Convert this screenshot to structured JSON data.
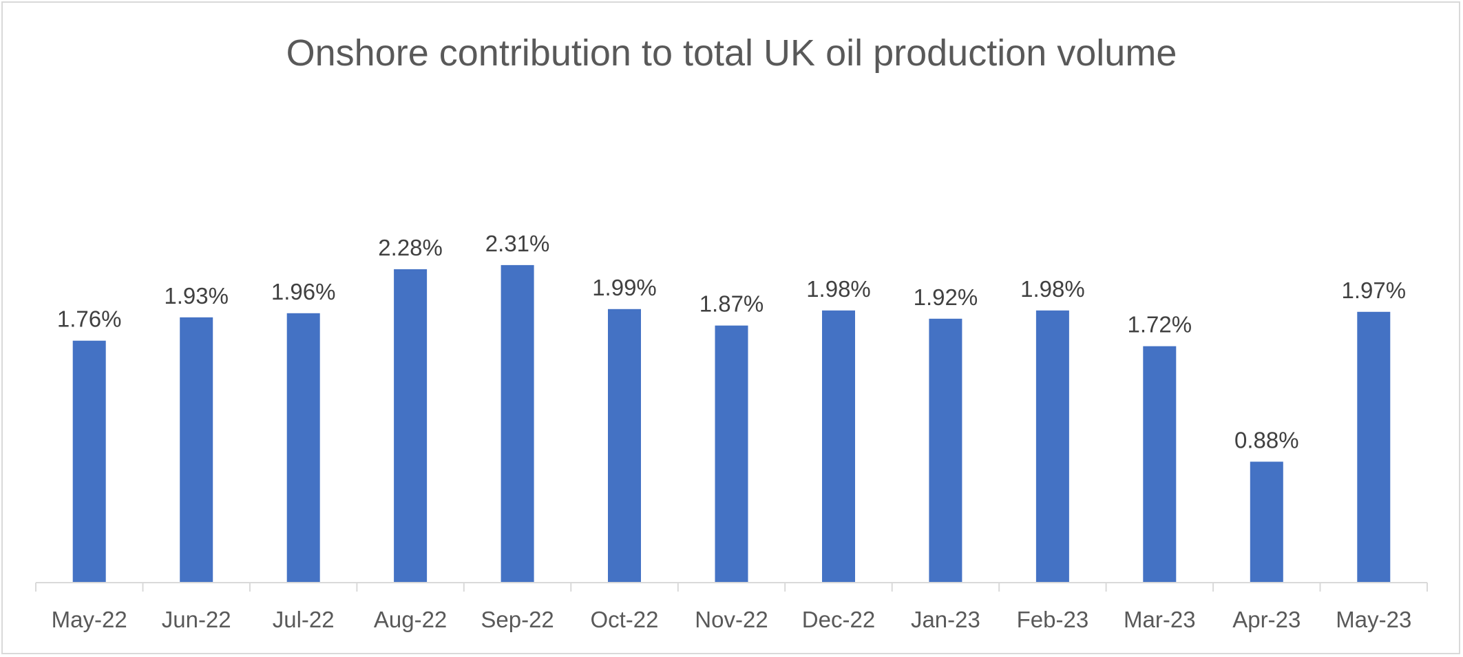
{
  "chart_data": {
    "type": "bar",
    "title": "Onshore contribution to total UK oil production volume",
    "xlabel": "",
    "ylabel": "",
    "categories": [
      "May-22",
      "Jun-22",
      "Jul-22",
      "Aug-22",
      "Sep-22",
      "Oct-22",
      "Nov-22",
      "Dec-22",
      "Jan-23",
      "Feb-23",
      "Mar-23",
      "Apr-23",
      "May-23"
    ],
    "values": [
      1.76,
      1.93,
      1.96,
      2.28,
      2.31,
      1.99,
      1.87,
      1.98,
      1.92,
      1.98,
      1.72,
      0.88,
      1.97
    ],
    "data_labels": [
      "1.76%",
      "1.93%",
      "1.96%",
      "2.28%",
      "2.31%",
      "1.99%",
      "1.87%",
      "1.98%",
      "1.92%",
      "1.98%",
      "1.72%",
      "0.88%",
      "1.97%"
    ],
    "unit": "%",
    "ylim": [
      0,
      2.4
    ],
    "grid": false,
    "legend": "none",
    "colors": {
      "bar": "#4472C4",
      "axis": "#d9d9d9",
      "title": "#595959",
      "data_label": "#404040",
      "tick_label": "#595959",
      "frame": "#d9d9d9"
    }
  }
}
